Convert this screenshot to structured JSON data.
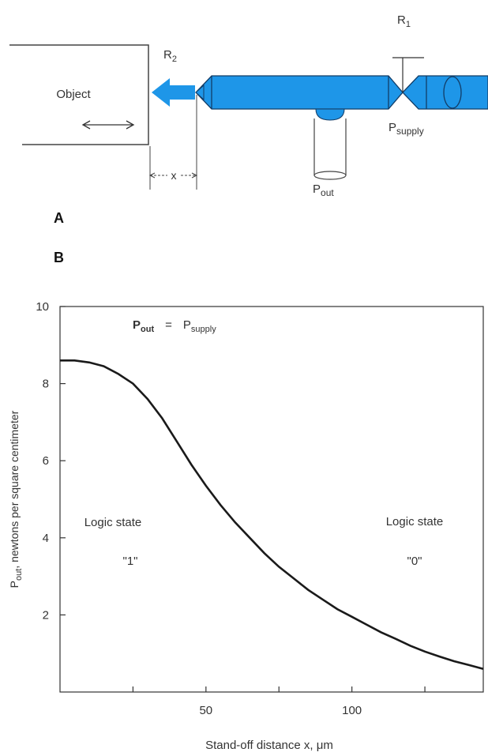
{
  "diagram": {
    "panel_a_label": "A",
    "object_label": "Object",
    "r2_main": "R",
    "r2_sub": "2",
    "r1_main": "R",
    "r1_sub": "1",
    "x_label": "x",
    "pout_main": "P",
    "pout_sub": "out",
    "psupply_main": "P",
    "psupply_sub": "supply",
    "jet_color": "#1e96e8"
  },
  "panel_b_label": "B",
  "chart_data": {
    "type": "line",
    "title_left_main": "P",
    "title_left_sub": "out",
    "title_eq": "=",
    "title_right_main": "P",
    "title_right_sub": "supply",
    "xlabel": "Stand-off distance x, μm",
    "ylabel_main": "P",
    "ylabel_sub": "out",
    "ylabel_rest": ", newtons per square centimeter",
    "xlim": [
      0,
      145
    ],
    "ylim": [
      0,
      10
    ],
    "x_tick_labels": [
      "50",
      "100"
    ],
    "x_tick_values": [
      50,
      100
    ],
    "x_minor_ticks": [
      25,
      75,
      125
    ],
    "y_ticks": [
      2,
      4,
      6,
      8,
      10
    ],
    "annotations": {
      "left_line1": "Logic state",
      "left_line2": "\"1\"",
      "right_line1": "Logic state",
      "right_line2": "\"0\""
    },
    "x": [
      0,
      5,
      10,
      15,
      20,
      25,
      30,
      35,
      40,
      45,
      50,
      55,
      60,
      65,
      70,
      75,
      80,
      85,
      90,
      95,
      100,
      105,
      110,
      115,
      120,
      125,
      130,
      135,
      140,
      145
    ],
    "y": [
      8.6,
      8.6,
      8.55,
      8.45,
      8.25,
      8.0,
      7.6,
      7.1,
      6.5,
      5.9,
      5.35,
      4.85,
      4.4,
      4.0,
      3.6,
      3.25,
      2.95,
      2.65,
      2.4,
      2.15,
      1.95,
      1.75,
      1.55,
      1.38,
      1.2,
      1.05,
      0.92,
      0.8,
      0.7,
      0.6
    ]
  }
}
